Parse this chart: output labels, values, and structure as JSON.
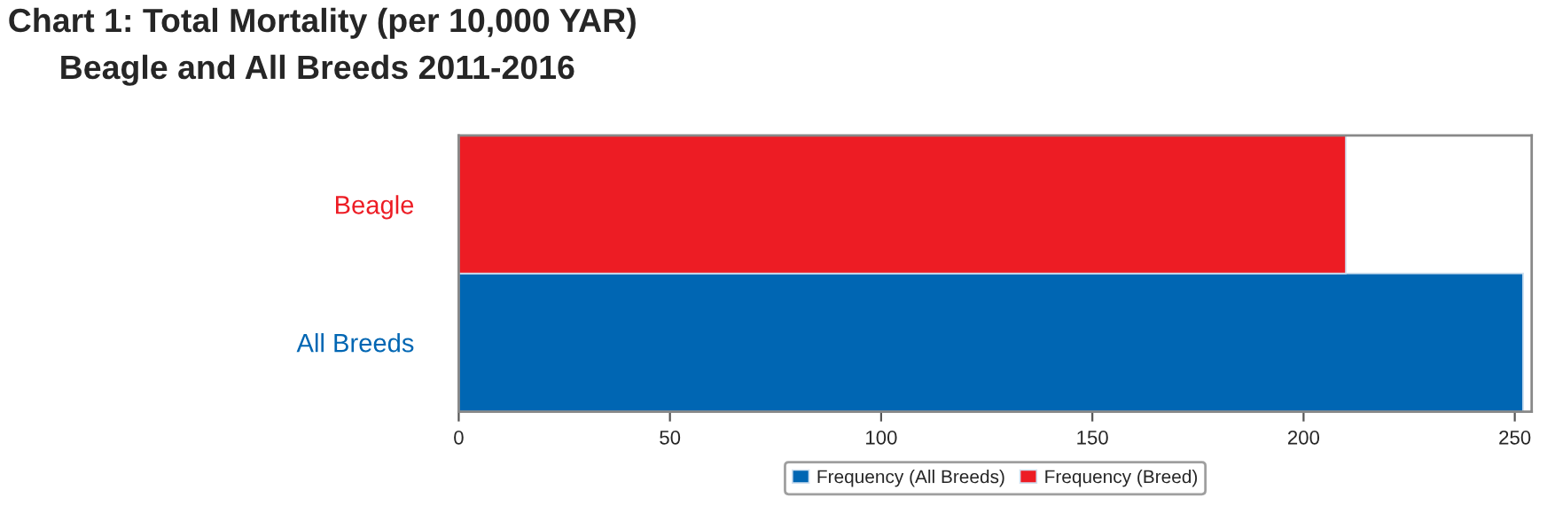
{
  "chart_data": {
    "type": "bar",
    "orientation": "horizontal",
    "stacked": true,
    "title": "Chart 1: Total Mortality (per 10,000 YAR)",
    "subtitle": "Beagle and All Breeds 2011-2016",
    "categories": [
      "Beagle",
      "All Breeds"
    ],
    "series": [
      {
        "name": "Frequency (All Breeds)",
        "color": "#0066b3",
        "values": [
          null,
          252
        ]
      },
      {
        "name": "Frequency (Breed)",
        "color": "#ed1c24",
        "values": [
          210,
          null
        ]
      }
    ],
    "xlim": [
      0,
      254
    ],
    "xticks": [
      0,
      50,
      100,
      150,
      200,
      250
    ],
    "grid": false,
    "legend": "bottom"
  }
}
